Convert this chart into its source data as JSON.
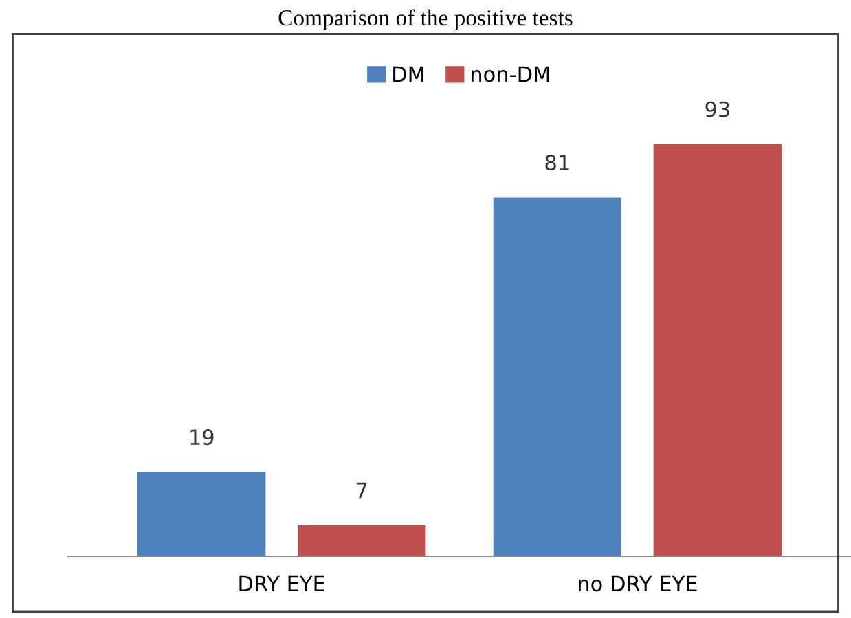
{
  "chart_data": {
    "type": "bar",
    "title": "Comparison of the positive tests",
    "categories": [
      "DRY EYE",
      "no DRY EYE"
    ],
    "series": [
      {
        "name": "DM",
        "color": "#4f81bd",
        "values": [
          19,
          81
        ]
      },
      {
        "name": "non-DM",
        "color": "#c0504d",
        "values": [
          7,
          93
        ]
      }
    ],
    "data_labels": true,
    "legend": "top",
    "grid": false
  }
}
